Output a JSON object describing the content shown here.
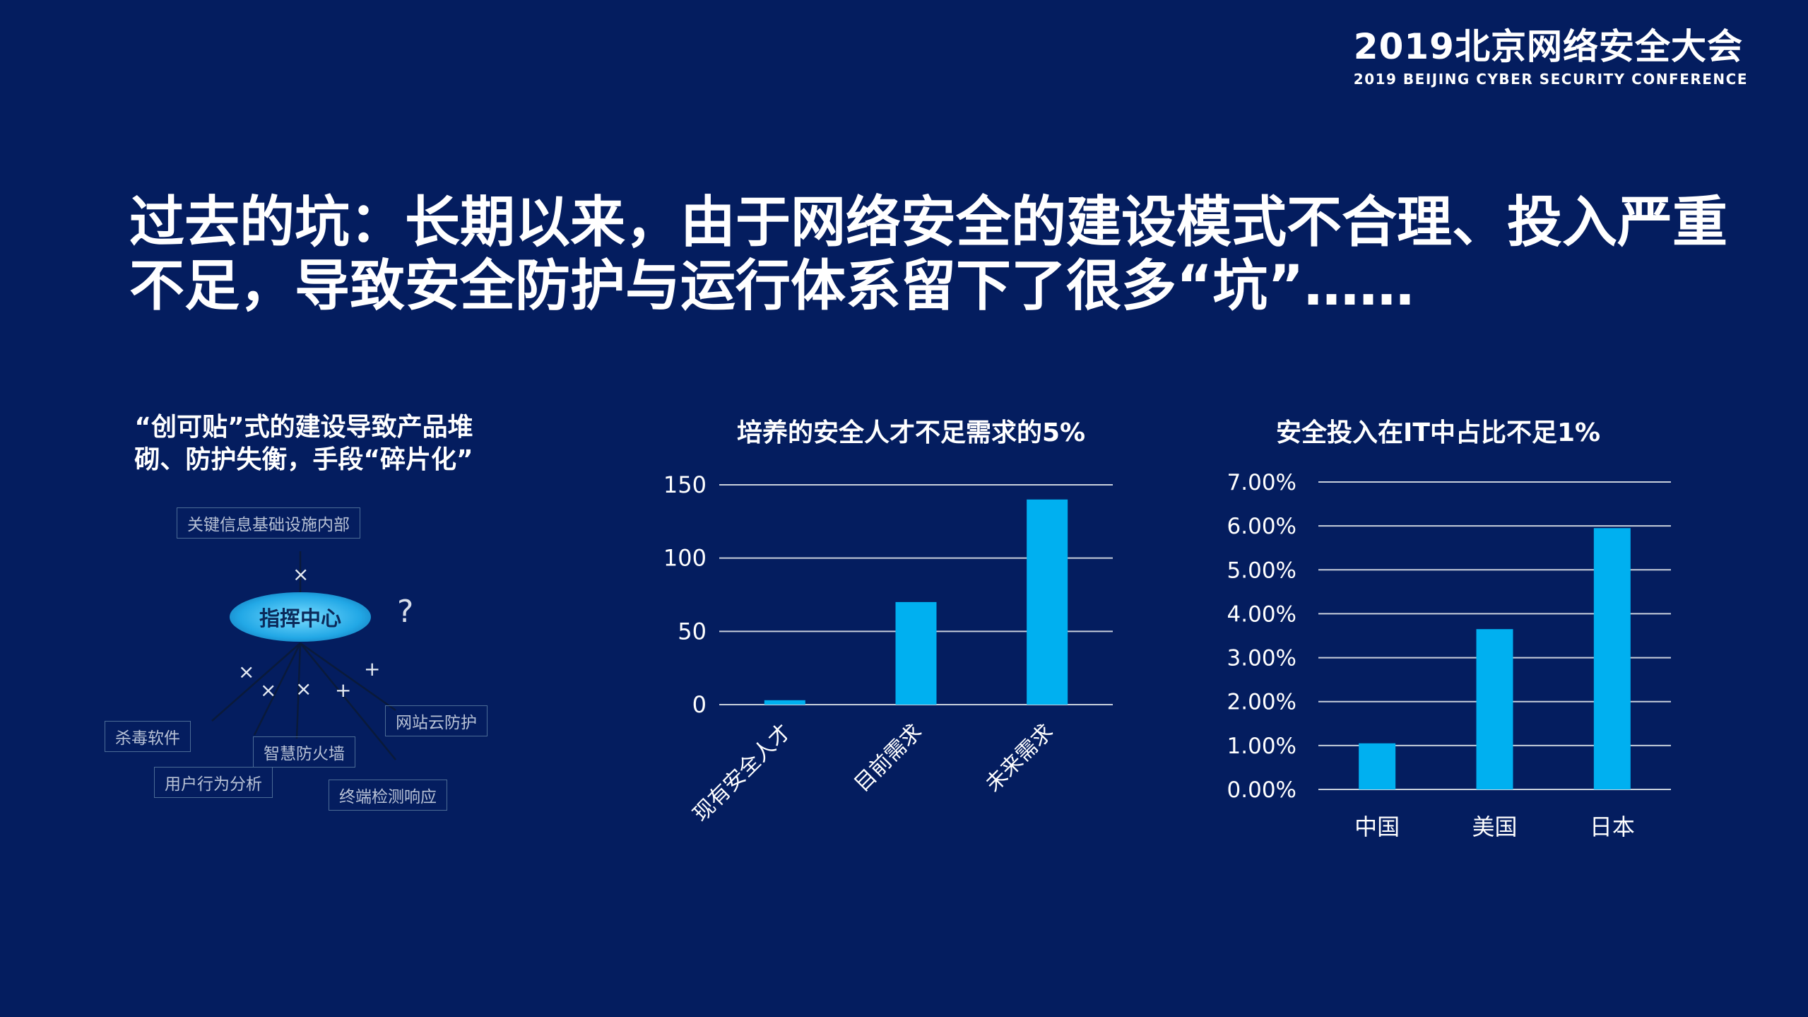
{
  "header": {
    "brand_main": "2019北京网络安全大会",
    "brand_sub": "2019 BEIJING CYBER SECURITY CONFERENCE"
  },
  "headline": {
    "line1": "过去的坑：长期以来，由于网络安全的建设模式不合理、投入严重",
    "line2": "不足，导致安全防护与运行体系留下了很多“坑”……"
  },
  "diagram": {
    "title_line1": "“创可贴”式的建设导致产品堆",
    "title_line2": "砌、防护失衡，手段“碎片化”",
    "top_node": "关键信息基础设施内部",
    "hub": "指挥中心",
    "question": "?",
    "nodes": {
      "antivirus": "杀毒软件",
      "firewall": "智慧防火墙",
      "web_protect": "网站云防护",
      "behavior": "用户行为分析",
      "endpoint": "终端检测响应"
    },
    "marks": {
      "x": "×",
      "plus": "+"
    }
  },
  "chart_data": [
    {
      "type": "bar",
      "title": "培养的安全人才不足需求的5%",
      "categories": [
        "现有安全人才",
        "目前需求",
        "未来需求"
      ],
      "values": [
        3,
        70,
        140
      ],
      "ylim": [
        0,
        150
      ],
      "yticks": [
        0,
        50,
        100,
        150
      ],
      "grid": true,
      "legend": "none",
      "color": "#00b0f0"
    },
    {
      "type": "bar",
      "title": "安全投入在IT中占比不足1%",
      "categories": [
        "中国",
        "美国",
        "日本"
      ],
      "values": [
        0.0105,
        0.0365,
        0.0595
      ],
      "ylim": [
        0,
        0.07
      ],
      "yticks": [
        0,
        0.01,
        0.02,
        0.03,
        0.04,
        0.05,
        0.06,
        0.07
      ],
      "ytick_labels": [
        "0.00%",
        "1.00%",
        "2.00%",
        "3.00%",
        "4.00%",
        "5.00%",
        "6.00%",
        "7.00%"
      ],
      "grid": true,
      "legend": "none",
      "color": "#00b0f0"
    }
  ]
}
